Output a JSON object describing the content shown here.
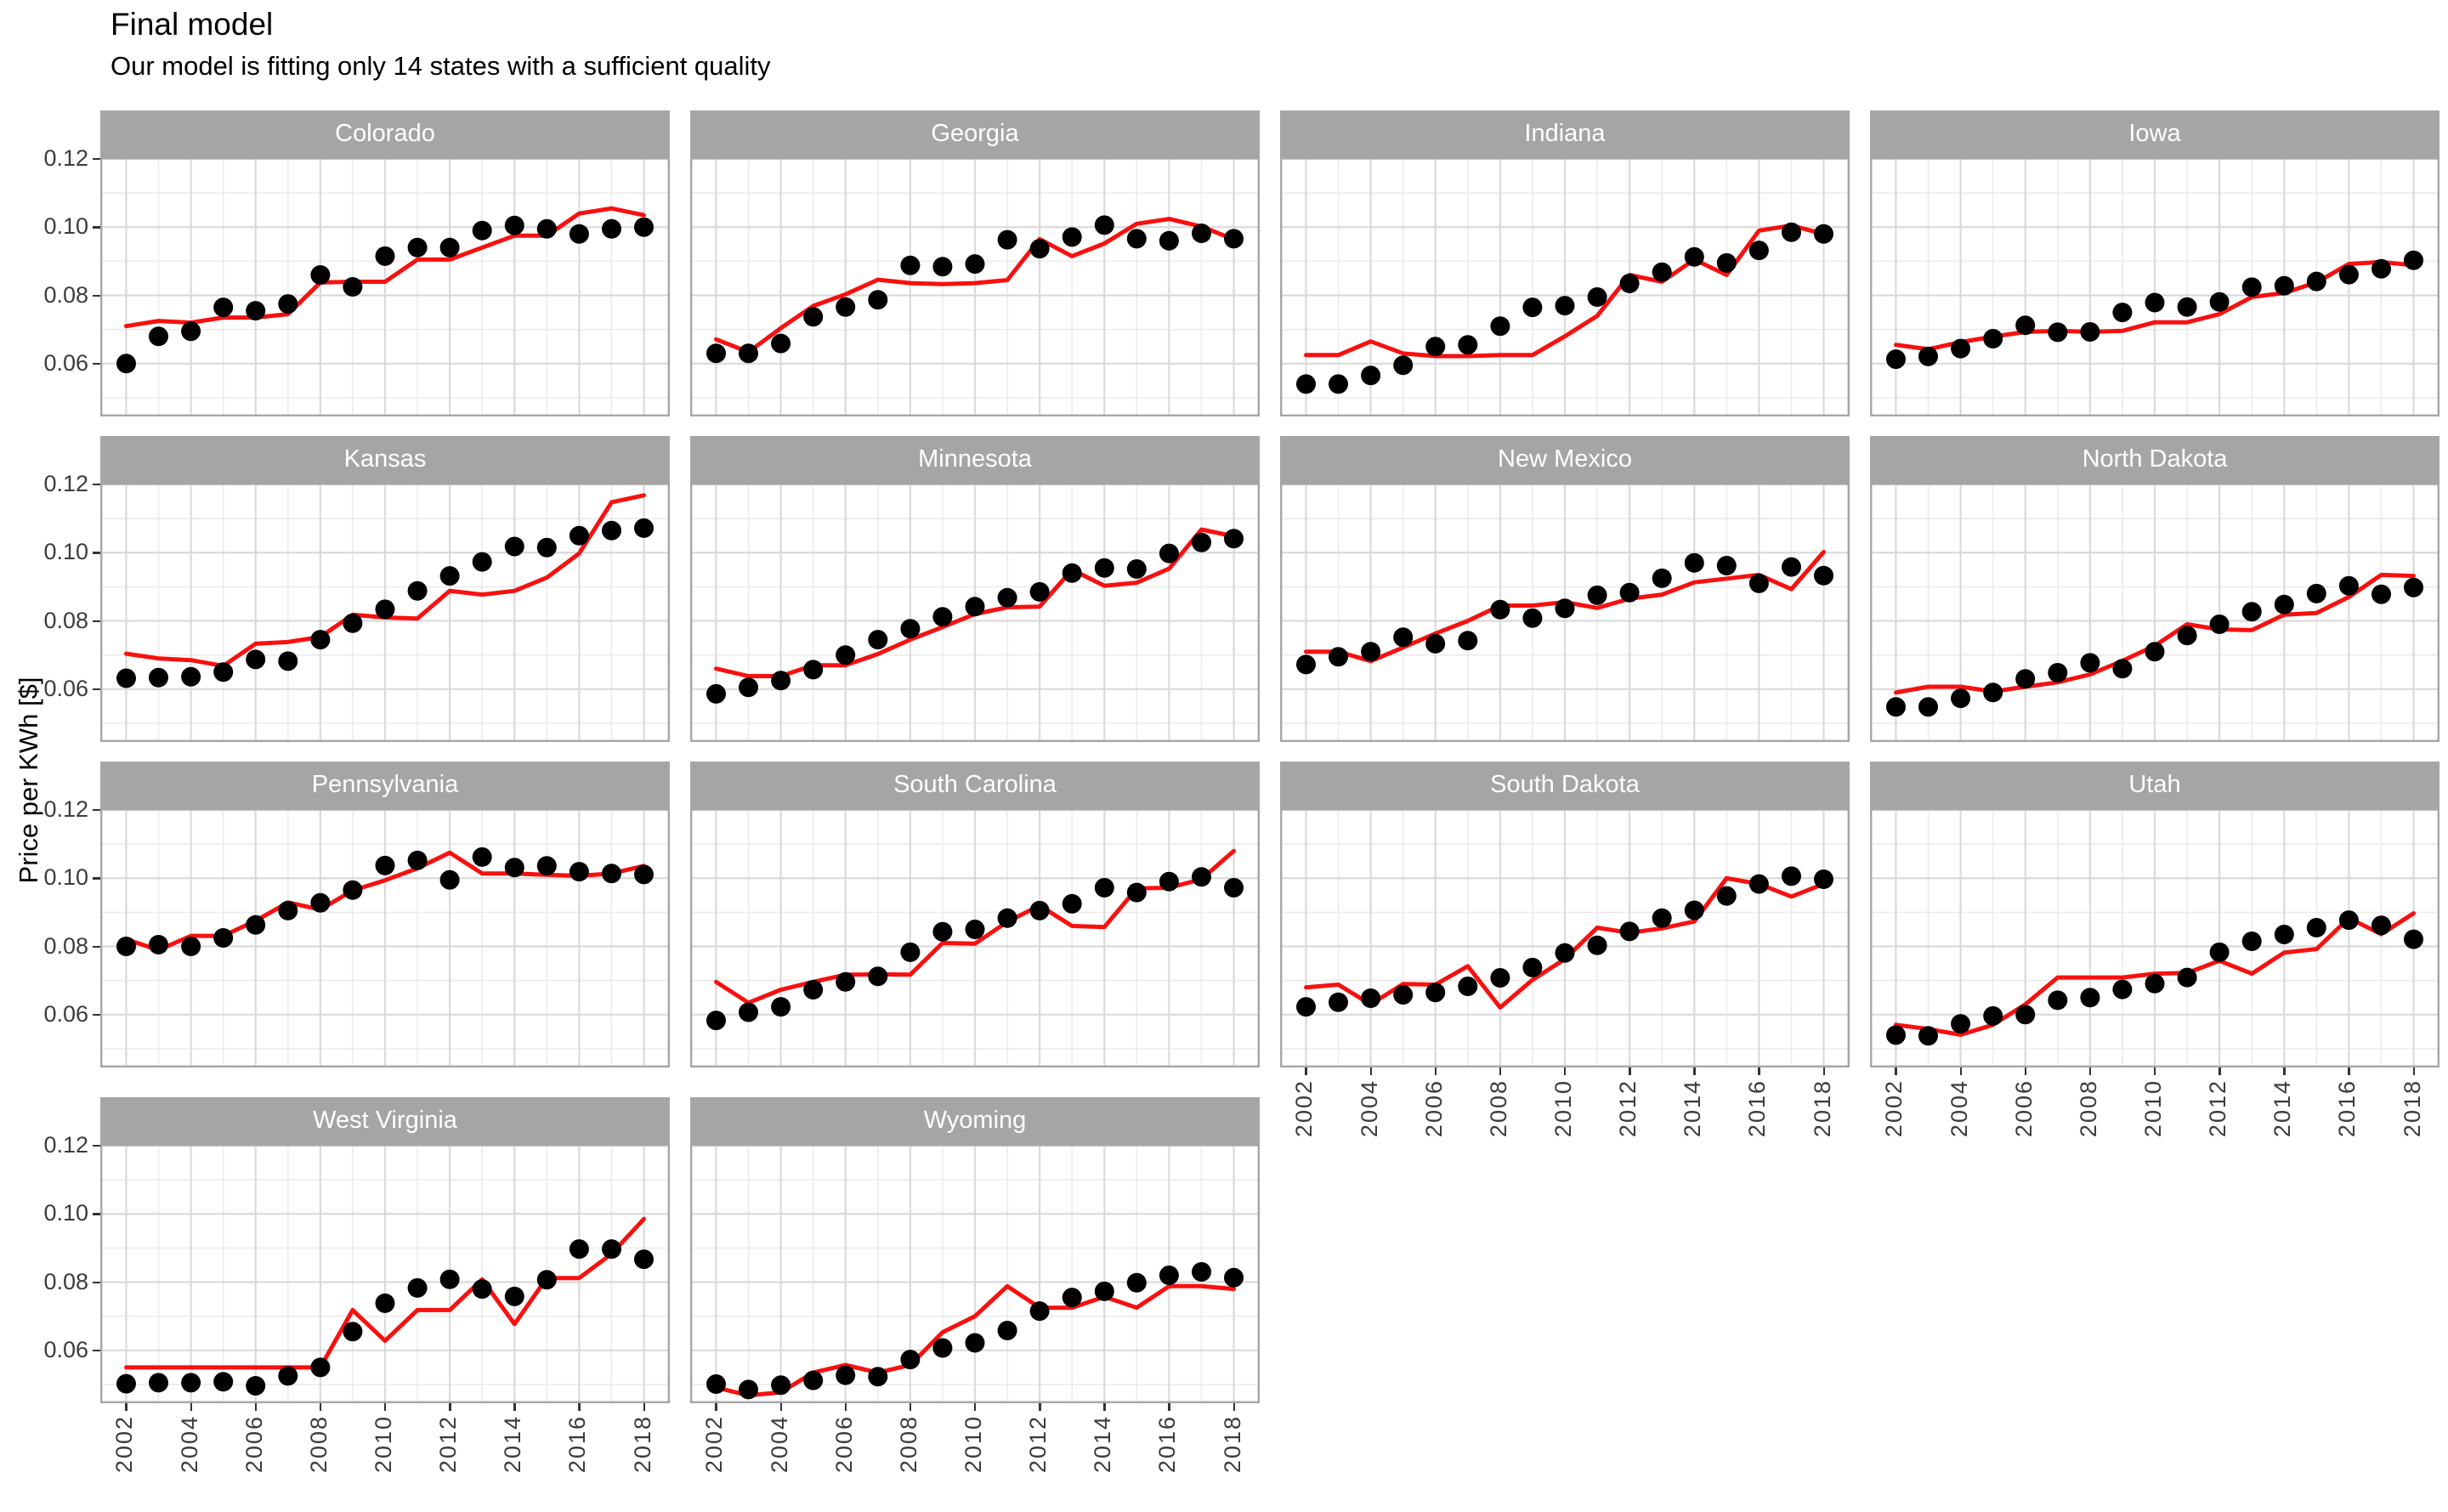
{
  "title": "Final model",
  "subtitle": "Our model is fitting only 14 states with a sufficient quality",
  "y_axis_title": "Price per KWh [$]",
  "colors": {
    "model_line": "#F8100F",
    "observed_dot": "#000000",
    "strip_background": "#A5A5A5",
    "strip_text": "#FFFFFF",
    "grid_major": "#DADADA",
    "grid_minor": "#EBEBEB",
    "panel_border": "#A6A6A6",
    "tick_text": "#3C3C3C"
  },
  "chart_data": {
    "type": "line",
    "title": "Final model",
    "subtitle": "Our model is fitting only 14 states with a sufficient quality",
    "xlabel": "",
    "ylabel": "Price per KWh [$]",
    "grid": true,
    "legend": "none",
    "facet_layout": {
      "columns": 4,
      "rows": 4
    },
    "x": [
      2002,
      2003,
      2004,
      2005,
      2006,
      2007,
      2008,
      2009,
      2010,
      2011,
      2012,
      2013,
      2014,
      2015,
      2016,
      2017,
      2018
    ],
    "x_tick_values": [
      2002,
      2004,
      2006,
      2008,
      2010,
      2012,
      2014,
      2016,
      2018
    ],
    "x_tick_labels": [
      "2002",
      "2004",
      "2006",
      "2008",
      "2010",
      "2012",
      "2014",
      "2016",
      "2018"
    ],
    "y_tick_values": [
      0.12,
      0.1,
      0.08,
      0.06
    ],
    "y_tick_labels": [
      "0.12",
      "0.10",
      "0.08",
      "0.06"
    ],
    "y_minor_values": [
      0.11,
      0.09,
      0.07,
      0.05
    ],
    "xlim": [
      2001.2,
      2018.8
    ],
    "ylim": [
      0.0445,
      0.1205
    ],
    "series_per_facet": [
      {
        "name": "observed",
        "style": "points",
        "color": "#000000"
      },
      {
        "name": "model",
        "style": "line",
        "color": "#F8100F"
      }
    ],
    "facets": [
      {
        "state": "Colorado",
        "observed": [
          0.06,
          0.068,
          0.0695,
          0.0765,
          0.0755,
          0.0775,
          0.086,
          0.0825,
          0.0915,
          0.094,
          0.094,
          0.099,
          0.1005,
          0.0995,
          0.098,
          0.0995,
          0.1
        ],
        "model": [
          0.071,
          0.0725,
          0.072,
          0.0735,
          0.0735,
          0.0745,
          0.0838,
          0.084,
          0.084,
          0.0905,
          0.0905,
          0.094,
          0.0975,
          0.0975,
          0.104,
          0.1055,
          0.1035
        ]
      },
      {
        "state": "Georgia",
        "observed": [
          0.063,
          0.063,
          0.0659,
          0.0737,
          0.0766,
          0.0787,
          0.0888,
          0.0884,
          0.0892,
          0.0963,
          0.0937,
          0.0971,
          0.1006,
          0.0966,
          0.096,
          0.0982,
          0.0966
        ],
        "model": [
          0.0671,
          0.0634,
          0.0704,
          0.0769,
          0.0803,
          0.0846,
          0.0836,
          0.0833,
          0.0836,
          0.0845,
          0.0965,
          0.0915,
          0.0952,
          0.101,
          0.1024,
          0.1002,
          0.0964
        ]
      },
      {
        "state": "Indiana",
        "observed": [
          0.054,
          0.054,
          0.0565,
          0.0595,
          0.065,
          0.0655,
          0.071,
          0.0765,
          0.077,
          0.0795,
          0.0835,
          0.0868,
          0.0913,
          0.0895,
          0.0932,
          0.0985,
          0.098
        ],
        "model": [
          0.0625,
          0.0625,
          0.0665,
          0.063,
          0.0622,
          0.0622,
          0.0625,
          0.0625,
          0.068,
          0.074,
          0.086,
          0.084,
          0.0905,
          0.086,
          0.099,
          0.1005,
          0.098
        ]
      },
      {
        "state": "Iowa",
        "observed": [
          0.0613,
          0.0621,
          0.0644,
          0.0673,
          0.0712,
          0.0692,
          0.0693,
          0.075,
          0.0779,
          0.0766,
          0.0781,
          0.0824,
          0.0828,
          0.0841,
          0.0861,
          0.0878,
          0.0903
        ],
        "model": [
          0.0655,
          0.0642,
          0.0663,
          0.0679,
          0.0693,
          0.0696,
          0.0693,
          0.0696,
          0.0721,
          0.0721,
          0.0745,
          0.0795,
          0.0807,
          0.0838,
          0.0892,
          0.0898,
          0.0888
        ]
      },
      {
        "state": "Kansas",
        "observed": [
          0.0632,
          0.0634,
          0.0636,
          0.065,
          0.0687,
          0.0682,
          0.0745,
          0.0793,
          0.0834,
          0.0888,
          0.0932,
          0.0973,
          0.1018,
          0.1015,
          0.105,
          0.1065,
          0.1072
        ],
        "model": [
          0.0704,
          0.069,
          0.0685,
          0.0668,
          0.0733,
          0.0738,
          0.0753,
          0.0818,
          0.081,
          0.0807,
          0.0888,
          0.0877,
          0.0888,
          0.0927,
          0.0998,
          0.1148,
          0.1168
        ]
      },
      {
        "state": "Minnesota",
        "observed": [
          0.0586,
          0.0605,
          0.0625,
          0.0657,
          0.07,
          0.0745,
          0.0777,
          0.0812,
          0.0842,
          0.0868,
          0.0885,
          0.094,
          0.0955,
          0.0952,
          0.0998,
          0.103,
          0.1041
        ],
        "model": [
          0.066,
          0.0638,
          0.0638,
          0.067,
          0.067,
          0.0703,
          0.0745,
          0.0782,
          0.082,
          0.084,
          0.0842,
          0.095,
          0.0903,
          0.0912,
          0.0953,
          0.1068,
          0.1048
        ]
      },
      {
        "state": "New Mexico",
        "observed": [
          0.0672,
          0.0695,
          0.071,
          0.0752,
          0.0733,
          0.0742,
          0.0833,
          0.0808,
          0.0837,
          0.0875,
          0.0883,
          0.0925,
          0.097,
          0.0962,
          0.091,
          0.0958,
          0.0933
        ],
        "model": [
          0.071,
          0.071,
          0.0682,
          0.0722,
          0.0763,
          0.08,
          0.0845,
          0.0845,
          0.0855,
          0.0838,
          0.0865,
          0.0877,
          0.0913,
          0.0924,
          0.0935,
          0.0893,
          0.1002
        ]
      },
      {
        "state": "North Dakota",
        "observed": [
          0.0548,
          0.0548,
          0.0573,
          0.059,
          0.063,
          0.0648,
          0.0677,
          0.066,
          0.071,
          0.0757,
          0.079,
          0.0827,
          0.0848,
          0.088,
          0.0903,
          0.0878,
          0.0898
        ],
        "model": [
          0.059,
          0.0607,
          0.0607,
          0.0593,
          0.0607,
          0.062,
          0.0643,
          0.0683,
          0.0727,
          0.079,
          0.0775,
          0.0773,
          0.0818,
          0.0823,
          0.087,
          0.0935,
          0.0932
        ]
      },
      {
        "state": "Pennsylvania",
        "observed": [
          0.08,
          0.0805,
          0.08,
          0.0825,
          0.0863,
          0.0905,
          0.0928,
          0.0965,
          0.1037,
          0.1052,
          0.0995,
          0.1062,
          0.1031,
          0.1036,
          0.1019,
          0.1014,
          0.1011
        ],
        "model": [
          0.0821,
          0.0789,
          0.0831,
          0.0831,
          0.0875,
          0.0929,
          0.0908,
          0.0964,
          0.0994,
          0.1029,
          0.1075,
          0.1014,
          0.1014,
          0.101,
          0.1007,
          0.1014,
          0.1036
        ]
      },
      {
        "state": "South Carolina",
        "observed": [
          0.0583,
          0.0607,
          0.0623,
          0.0673,
          0.0696,
          0.0712,
          0.0783,
          0.0843,
          0.085,
          0.0883,
          0.0905,
          0.0925,
          0.0972,
          0.0958,
          0.099,
          0.1004,
          0.0972
        ],
        "model": [
          0.0696,
          0.0635,
          0.0673,
          0.0696,
          0.0717,
          0.0718,
          0.0717,
          0.081,
          0.0808,
          0.0872,
          0.092,
          0.086,
          0.0857,
          0.097,
          0.0972,
          0.0997,
          0.108
        ]
      },
      {
        "state": "South Dakota",
        "observed": [
          0.0623,
          0.0636,
          0.0648,
          0.0658,
          0.0665,
          0.0683,
          0.0708,
          0.0738,
          0.0781,
          0.0803,
          0.0844,
          0.0883,
          0.0906,
          0.0948,
          0.0983,
          0.1006,
          0.0997
        ],
        "model": [
          0.068,
          0.0688,
          0.063,
          0.069,
          0.0688,
          0.0742,
          0.0621,
          0.0702,
          0.0763,
          0.0855,
          0.084,
          0.0853,
          0.0873,
          0.1,
          0.0983,
          0.0946,
          0.0983
        ]
      },
      {
        "state": "Utah",
        "observed": [
          0.054,
          0.0538,
          0.0573,
          0.0596,
          0.06,
          0.0642,
          0.065,
          0.0674,
          0.0691,
          0.0709,
          0.0783,
          0.0815,
          0.0835,
          0.0855,
          0.0877,
          0.0862,
          0.0821
        ],
        "model": [
          0.057,
          0.0558,
          0.0541,
          0.057,
          0.063,
          0.0709,
          0.0709,
          0.0709,
          0.072,
          0.0722,
          0.0758,
          0.072,
          0.0782,
          0.0792,
          0.0883,
          0.0836,
          0.0897
        ]
      },
      {
        "state": "West Virginia",
        "observed": [
          0.0502,
          0.0505,
          0.0505,
          0.0508,
          0.0496,
          0.0525,
          0.055,
          0.0655,
          0.0738,
          0.0783,
          0.0808,
          0.078,
          0.0758,
          0.0807,
          0.0897,
          0.0897,
          0.0867
        ],
        "model": [
          0.055,
          0.055,
          0.055,
          0.055,
          0.055,
          0.055,
          0.055,
          0.0718,
          0.0628,
          0.0718,
          0.0718,
          0.0808,
          0.0677,
          0.0812,
          0.0812,
          0.0883,
          0.0985
        ]
      },
      {
        "state": "Wyoming",
        "observed": [
          0.0501,
          0.0485,
          0.0498,
          0.0512,
          0.0527,
          0.0523,
          0.0573,
          0.0607,
          0.0622,
          0.0658,
          0.0715,
          0.0755,
          0.0773,
          0.0798,
          0.082,
          0.083,
          0.0813
        ],
        "model": [
          0.0491,
          0.0468,
          0.0477,
          0.0535,
          0.0557,
          0.0535,
          0.0557,
          0.0653,
          0.07,
          0.0788,
          0.0725,
          0.0725,
          0.0757,
          0.0725,
          0.0788,
          0.0788,
          0.078
        ]
      }
    ]
  }
}
